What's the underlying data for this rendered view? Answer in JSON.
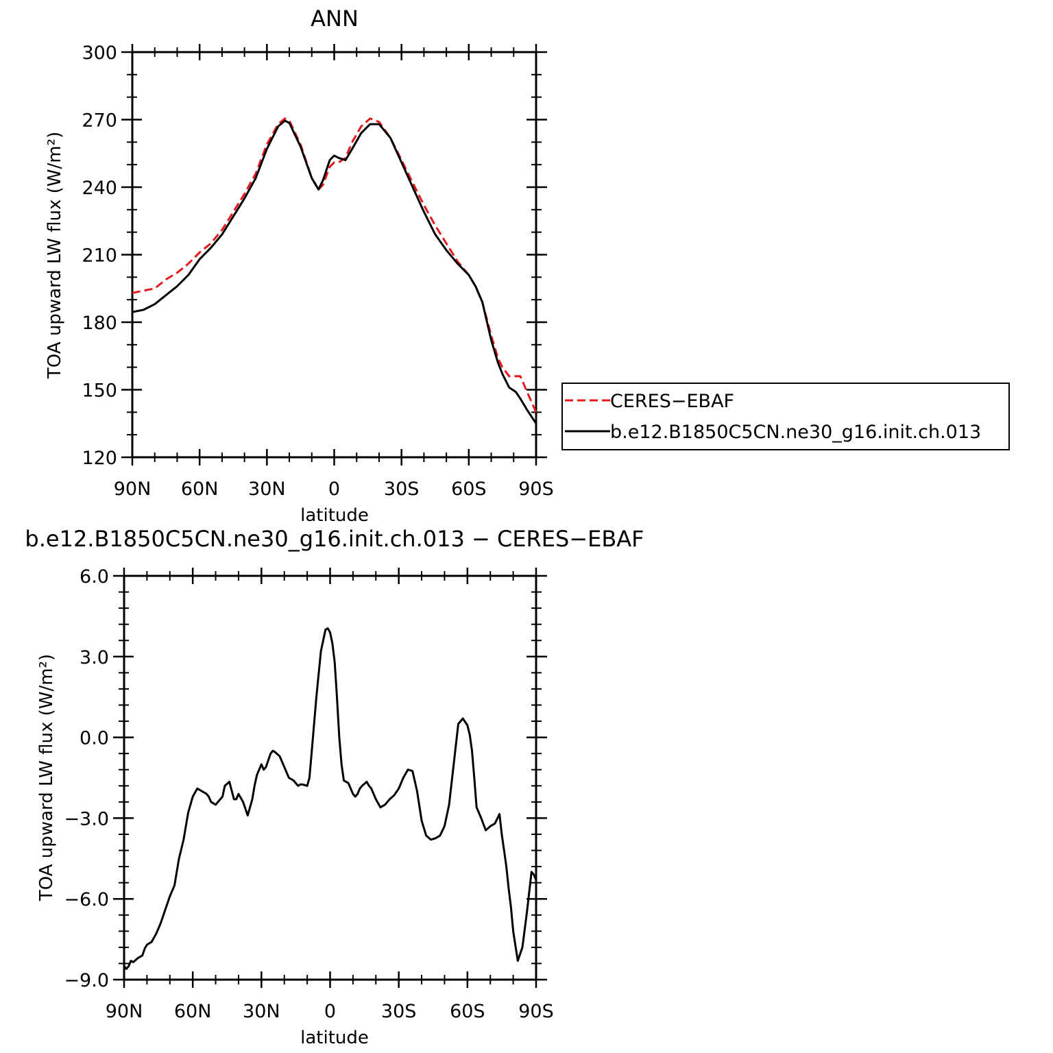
{
  "chart_data": [
    {
      "type": "line",
      "title": "ANN",
      "xlabel": "latitude",
      "ylabel": "TOA upward LW flux (W/m²)",
      "xlim": [
        90,
        -90
      ],
      "ylim": [
        120,
        300
      ],
      "xticks": [
        90,
        60,
        30,
        0,
        -30,
        -60,
        -90
      ],
      "xtick_labels": [
        "90N",
        "60N",
        "30N",
        "0",
        "30S",
        "60S",
        "90S"
      ],
      "yticks": [
        120,
        150,
        180,
        210,
        240,
        270,
        300
      ],
      "ytick_labels": [
        "120",
        "150",
        "180",
        "210",
        "240",
        "270",
        "300"
      ],
      "legend": {
        "position": "right",
        "entries": [
          "CERES−EBAF",
          "b.e12.B1850C5CN.ne30_g16.init.ch.013"
        ]
      },
      "series": [
        {
          "name": "CERES−EBAF",
          "color": "#e41a1c",
          "dash": "dashed",
          "x": [
            90,
            85,
            80,
            75,
            70,
            65,
            60,
            55,
            50,
            45,
            40,
            35,
            30,
            25,
            22,
            20,
            15,
            10,
            7,
            5,
            2,
            0,
            -2,
            -5,
            -8,
            -12,
            -16,
            -20,
            -25,
            -30,
            -35,
            -40,
            -45,
            -50,
            -55,
            -60,
            -63,
            -66,
            -70,
            -73,
            -75,
            -78,
            -81,
            -83,
            -86,
            -90
          ],
          "y": [
            193,
            194,
            195,
            199,
            202,
            206,
            211,
            215,
            221,
            229,
            237,
            246,
            259,
            268,
            270.5,
            269.5,
            259,
            244,
            239,
            241,
            249,
            251,
            251,
            253,
            260,
            267,
            270.5,
            269,
            262,
            252,
            242,
            232,
            223,
            215,
            207,
            201,
            196,
            189,
            174,
            164,
            160,
            156,
            156,
            156,
            149,
            140
          ]
        },
        {
          "name": "b.e12.B1850C5CN.ne30_g16.init.ch.013",
          "color": "#000000",
          "dash": "solid",
          "x": [
            90,
            85,
            80,
            75,
            70,
            65,
            60,
            55,
            50,
            45,
            40,
            35,
            30,
            25,
            22,
            20,
            15,
            10,
            7,
            5,
            2,
            0,
            -2,
            -5,
            -8,
            -12,
            -16,
            -20,
            -25,
            -30,
            -35,
            -40,
            -45,
            -50,
            -55,
            -60,
            -63,
            -66,
            -70,
            -73,
            -75,
            -78,
            -81,
            -83,
            -86,
            -90
          ],
          "y": [
            184.5,
            185.5,
            188,
            192,
            196,
            201,
            208,
            213,
            219,
            227,
            235,
            244,
            257,
            267,
            269.5,
            268.5,
            258,
            244,
            239,
            243,
            252,
            254,
            253,
            252,
            257,
            264,
            268,
            268,
            262,
            251,
            240,
            229,
            219,
            212,
            206,
            201,
            196,
            189,
            172,
            162,
            157,
            151,
            149,
            146,
            141,
            135
          ]
        }
      ]
    },
    {
      "type": "line",
      "title": "b.e12.B1850C5CN.ne30_g16.init.ch.013 − CERES−EBAF",
      "xlabel": "latitude",
      "ylabel": "TOA upward LW flux (W/m²)",
      "xlim": [
        90,
        -90
      ],
      "ylim": [
        -9,
        6
      ],
      "xticks": [
        90,
        60,
        30,
        0,
        -30,
        -60,
        -90
      ],
      "xtick_labels": [
        "90N",
        "60N",
        "30N",
        "0",
        "30S",
        "60S",
        "90S"
      ],
      "yticks": [
        -9,
        -6,
        -3,
        0,
        3,
        6
      ],
      "ytick_labels": [
        "−9.0",
        "−6.0",
        "−3.0",
        "0.0",
        "3.0",
        "6.0"
      ],
      "series": [
        {
          "color": "#000000",
          "dash": "solid",
          "x": [
            90,
            89,
            88,
            87,
            86,
            84,
            82,
            81,
            80,
            78,
            76,
            75,
            74,
            72,
            70,
            68,
            66,
            64,
            63,
            62,
            60,
            58,
            57,
            56,
            54,
            53,
            52,
            50,
            48,
            47,
            46,
            44,
            42,
            41,
            40,
            38,
            36,
            34,
            33,
            32,
            30,
            29,
            28,
            26,
            25,
            24,
            22,
            20,
            18,
            16,
            14,
            13,
            12,
            10,
            9,
            8,
            6,
            4,
            2,
            1,
            0,
            -1,
            -2,
            -3,
            -4,
            -5,
            -6,
            -7,
            -8,
            -10,
            -11,
            -12,
            -13,
            -14,
            -16,
            -17,
            -18,
            -20,
            -22,
            -24,
            -26,
            -28,
            -30,
            -32,
            -34,
            -36,
            -38,
            -40,
            -42,
            -44,
            -46,
            -48,
            -50,
            -52,
            -54,
            -56,
            -58,
            -60,
            -61,
            -62,
            -63,
            -64,
            -66,
            -68,
            -70,
            -71,
            -72,
            -74,
            -75,
            -76,
            -77,
            -78,
            -79,
            -80,
            -82,
            -84,
            -86,
            -88,
            -89,
            -90
          ],
          "y": [
            -8.5,
            -8.6,
            -8.5,
            -8.3,
            -8.35,
            -8.2,
            -8.1,
            -7.85,
            -7.7,
            -7.6,
            -7.3,
            -7.1,
            -6.9,
            -6.4,
            -5.9,
            -5.5,
            -4.5,
            -3.8,
            -3.3,
            -2.8,
            -2.2,
            -1.9,
            -1.95,
            -2.0,
            -2.1,
            -2.2,
            -2.4,
            -2.5,
            -2.3,
            -2.2,
            -1.8,
            -1.65,
            -2.3,
            -2.3,
            -2.1,
            -2.4,
            -2.9,
            -2.3,
            -1.8,
            -1.4,
            -1.0,
            -1.2,
            -1.1,
            -0.6,
            -0.5,
            -0.55,
            -0.7,
            -1.1,
            -1.5,
            -1.6,
            -1.8,
            -1.75,
            -1.75,
            -1.8,
            -1.5,
            -0.5,
            1.5,
            3.2,
            4.0,
            4.05,
            3.9,
            3.5,
            2.8,
            1.5,
            0.0,
            -1.0,
            -1.6,
            -1.65,
            -1.7,
            -2.1,
            -2.2,
            -2.1,
            -1.9,
            -1.8,
            -1.65,
            -1.8,
            -1.9,
            -2.3,
            -2.6,
            -2.5,
            -2.3,
            -2.15,
            -1.9,
            -1.5,
            -1.2,
            -1.25,
            -2.0,
            -3.1,
            -3.65,
            -3.8,
            -3.75,
            -3.65,
            -3.3,
            -2.5,
            -1.0,
            0.5,
            0.7,
            0.45,
            0.1,
            -0.5,
            -1.5,
            -2.6,
            -3.0,
            -3.45,
            -3.3,
            -3.25,
            -3.2,
            -2.85,
            -3.6,
            -4.2,
            -4.8,
            -5.6,
            -6.3,
            -7.2,
            -8.3,
            -7.8,
            -6.5,
            -5.0,
            -5.1,
            -5.3
          ]
        }
      ]
    }
  ]
}
